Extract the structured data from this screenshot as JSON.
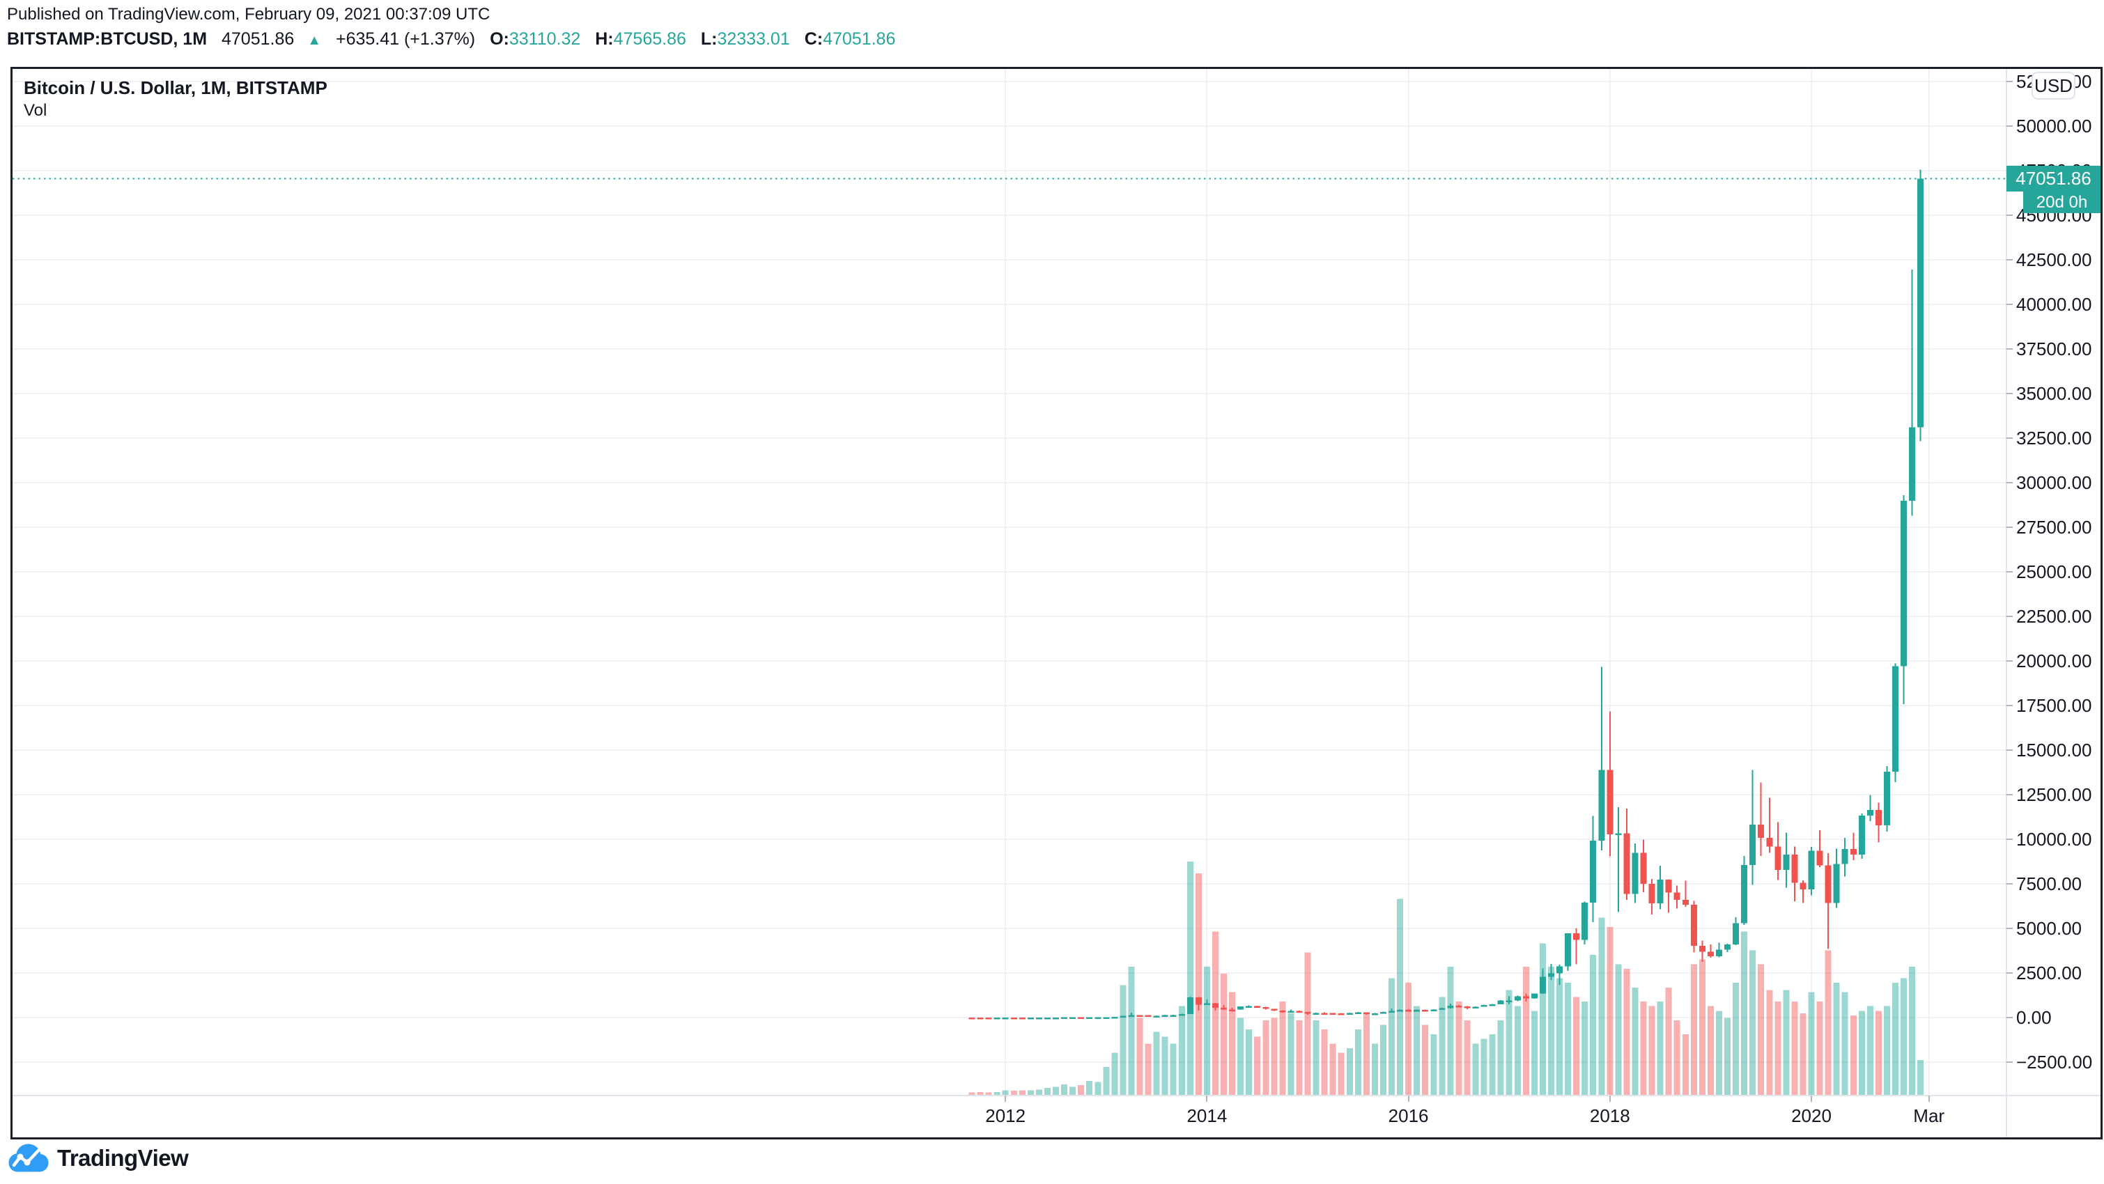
{
  "header": {
    "published_line": "Published on TradingView.com, February 09, 2021 00:37:09 UTC",
    "ticker": {
      "symbol_interval": "BITSTAMP:BTCUSD, 1M",
      "last_price": "47051.86",
      "direction_icon": "up-triangle",
      "change": "+635.41 (+1.37%)",
      "open_label": "O:",
      "open": "33110.32",
      "high_label": "H:",
      "high": "47565.86",
      "low_label": "L:",
      "low": "32333.01",
      "close_label": "C:",
      "close": "47051.86"
    }
  },
  "chart": {
    "pane_title": "Bitcoin / U.S. Dollar, 1M, BITSTAMP",
    "indicator_label": "Vol",
    "currency_button": "USD",
    "current_price_label": "47051.86",
    "countdown_label": "20d 0h",
    "y_axis_ticks": [
      "52500.00",
      "50000.00",
      "47500.00",
      "45000.00",
      "42500.00",
      "40000.00",
      "37500.00",
      "35000.00",
      "32500.00",
      "30000.00",
      "27500.00",
      "25000.00",
      "22500.00",
      "20000.00",
      "17500.00",
      "15000.00",
      "12500.00",
      "10000.00",
      "7500.00",
      "5000.00",
      "2500.00",
      "0.00",
      "−2500.00"
    ],
    "x_axis_ticks": [
      {
        "label": "2012",
        "month_index": 4
      },
      {
        "label": "2014",
        "month_index": 28
      },
      {
        "label": "2016",
        "month_index": 52
      },
      {
        "label": "2018",
        "month_index": 76
      },
      {
        "label": "2020",
        "month_index": 100
      },
      {
        "label": "Mar",
        "month_index": 114
      }
    ]
  },
  "footer": {
    "brand": "TradingView",
    "logo_icon": "tradingview-cloud-logo"
  },
  "colors": {
    "text": "#131722",
    "teal": "#26a69a",
    "red": "#ef5350",
    "volume_teal": "rgba(38,166,154,0.45)",
    "volume_red": "rgba(239,83,80,0.45)",
    "grid": "#ededf1",
    "separator": "#e0e3eb",
    "border": "#1b1f2a",
    "logo_blue": "#2f9cf5"
  },
  "chart_data": {
    "type": "candlestick",
    "symbol": "BITSTAMP:BTCUSD",
    "interval": "1M",
    "title": "Bitcoin / U.S. Dollar, 1M, BITSTAMP",
    "indicator": "Vol",
    "grid": true,
    "price_axis": {
      "side": "right",
      "min": -2500,
      "max": 52500,
      "tick_step": 2500
    },
    "current_price": 47051.86,
    "bar_close_countdown": "20d 0h",
    "columns": [
      "month",
      "open",
      "high",
      "low",
      "close",
      "volume_rel"
    ],
    "months": [
      [
        "2011-09",
        8.19,
        8.9,
        4.14,
        5.03,
        0.01
      ],
      [
        "2011-10",
        5.03,
        5.14,
        1.94,
        3.27,
        0.012
      ],
      [
        "2011-11",
        3.27,
        3.6,
        1.99,
        2.97,
        0.01
      ],
      [
        "2011-12",
        2.97,
        4.84,
        2.84,
        4.72,
        0.012
      ],
      [
        "2012-01",
        4.72,
        7.22,
        3.8,
        5.48,
        0.02
      ],
      [
        "2012-02",
        5.48,
        5.7,
        3.8,
        4.92,
        0.018
      ],
      [
        "2012-03",
        4.92,
        5.45,
        4.45,
        4.88,
        0.02
      ],
      [
        "2012-04",
        4.88,
        5.37,
        4.6,
        4.93,
        0.02
      ],
      [
        "2012-05",
        4.93,
        5.2,
        4.8,
        5.17,
        0.022
      ],
      [
        "2012-06",
        5.17,
        6.9,
        5.11,
        6.7,
        0.03
      ],
      [
        "2012-07",
        6.7,
        9.48,
        6.25,
        9.4,
        0.035
      ],
      [
        "2012-08",
        9.4,
        16.41,
        7.52,
        10.2,
        0.045
      ],
      [
        "2012-09",
        10.2,
        12.7,
        9.66,
        12.4,
        0.035
      ],
      [
        "2012-10",
        12.4,
        12.85,
        10.21,
        11.18,
        0.042
      ],
      [
        "2012-11",
        11.18,
        12.75,
        10.1,
        12.56,
        0.06
      ],
      [
        "2012-12",
        12.56,
        13.95,
        12.3,
        13.45,
        0.055
      ],
      [
        "2013-01",
        13.45,
        20.61,
        13.16,
        20.41,
        0.12
      ],
      [
        "2013-02",
        20.41,
        34.8,
        19.77,
        33.38,
        0.18
      ],
      [
        "2013-03",
        33.38,
        94.7,
        33.0,
        93.03,
        0.47
      ],
      [
        "2013-04",
        93.03,
        266.0,
        50.01,
        139.23,
        0.55
      ],
      [
        "2013-05",
        139.23,
        145.0,
        79.0,
        128.8,
        0.33
      ],
      [
        "2013-06",
        128.8,
        129.78,
        88.05,
        97.5,
        0.22
      ],
      [
        "2013-07",
        97.5,
        110.27,
        63.53,
        106.21,
        0.27
      ],
      [
        "2013-08",
        106.21,
        147.0,
        92.5,
        141.0,
        0.25
      ],
      [
        "2013-09",
        141.0,
        147.49,
        109.71,
        141.1,
        0.22
      ],
      [
        "2013-10",
        141.1,
        211.0,
        118.0,
        204.04,
        0.38
      ],
      [
        "2013-11",
        204.04,
        1163.0,
        203.0,
        1129.99,
        1.0
      ],
      [
        "2013-12",
        1129.99,
        1153.27,
        382.21,
        732.0,
        0.95
      ],
      [
        "2014-01",
        732.0,
        1006.0,
        711.11,
        805.94,
        0.55
      ],
      [
        "2014-02",
        805.94,
        830.0,
        400.0,
        550.1,
        0.7
      ],
      [
        "2014-03",
        550.1,
        709.71,
        436.99,
        458.11,
        0.52
      ],
      [
        "2014-04",
        458.11,
        548.0,
        340.0,
        447.45,
        0.44
      ],
      [
        "2014-05",
        447.45,
        628.0,
        420.0,
        627.91,
        0.33
      ],
      [
        "2014-06",
        627.91,
        675.0,
        540.0,
        641.8,
        0.28
      ],
      [
        "2014-07",
        641.8,
        658.0,
        565.61,
        583.96,
        0.25
      ],
      [
        "2014-08",
        583.96,
        602.0,
        442.0,
        478.99,
        0.32
      ],
      [
        "2014-09",
        478.99,
        492.0,
        365.22,
        387.4,
        0.33
      ],
      [
        "2014-10",
        387.4,
        411.0,
        275.0,
        338.36,
        0.4
      ],
      [
        "2014-11",
        338.36,
        457.09,
        320.15,
        378.0,
        0.35
      ],
      [
        "2014-12",
        378.0,
        384.44,
        304.0,
        318.24,
        0.32
      ],
      [
        "2015-01",
        318.24,
        321.0,
        152.4,
        217.46,
        0.61
      ],
      [
        "2015-02",
        217.46,
        265.0,
        210.0,
        254.24,
        0.32
      ],
      [
        "2015-03",
        254.24,
        300.04,
        236.0,
        244.22,
        0.28
      ],
      [
        "2015-04",
        244.22,
        262.0,
        210.0,
        235.94,
        0.22
      ],
      [
        "2015-05",
        235.94,
        249.99,
        227.0,
        229.85,
        0.18
      ],
      [
        "2015-06",
        229.85,
        268.0,
        219.0,
        263.35,
        0.2
      ],
      [
        "2015-07",
        263.35,
        319.0,
        255.0,
        284.0,
        0.28
      ],
      [
        "2015-08",
        284.0,
        285.93,
        162.0,
        229.99,
        0.35
      ],
      [
        "2015-09",
        229.99,
        248.0,
        223.0,
        236.06,
        0.22
      ],
      [
        "2015-10",
        236.06,
        334.0,
        235.0,
        314.17,
        0.3
      ],
      [
        "2015-11",
        314.17,
        504.0,
        290.11,
        377.0,
        0.5
      ],
      [
        "2015-12",
        377.0,
        469.8,
        340.0,
        430.05,
        0.84
      ],
      [
        "2016-01",
        430.05,
        462.92,
        350.0,
        368.49,
        0.48
      ],
      [
        "2016-02",
        368.49,
        447.0,
        365.0,
        437.0,
        0.38
      ],
      [
        "2016-03",
        437.0,
        440.49,
        388.0,
        416.01,
        0.3
      ],
      [
        "2016-04",
        416.01,
        470.0,
        412.0,
        448.31,
        0.26
      ],
      [
        "2016-05",
        448.31,
        550.0,
        442.0,
        531.39,
        0.42
      ],
      [
        "2016-06",
        531.39,
        781.99,
        516.72,
        673.33,
        0.55
      ],
      [
        "2016-07",
        673.33,
        707.48,
        604.0,
        624.68,
        0.4
      ],
      [
        "2016-08",
        624.68,
        638.0,
        465.0,
        572.26,
        0.32
      ],
      [
        "2016-09",
        572.26,
        628.0,
        565.0,
        609.73,
        0.22
      ],
      [
        "2016-10",
        609.73,
        719.97,
        605.0,
        700.97,
        0.24
      ],
      [
        "2016-11",
        700.97,
        755.0,
        677.0,
        745.69,
        0.26
      ],
      [
        "2016-12",
        745.69,
        982.57,
        741.0,
        963.74,
        0.32
      ],
      [
        "2017-01",
        963.74,
        1191.0,
        735.0,
        965.52,
        0.45
      ],
      [
        "2017-02",
        965.52,
        1233.0,
        915.0,
        1190.0,
        0.38
      ],
      [
        "2017-03",
        1190.0,
        1350.0,
        891.33,
        1079.99,
        0.55
      ],
      [
        "2017-04",
        1079.99,
        1347.91,
        1061.0,
        1348.0,
        0.36
      ],
      [
        "2017-05",
        1348.0,
        2760.1,
        1337.61,
        2286.41,
        0.65
      ],
      [
        "2017-06",
        2286.41,
        2999.0,
        2100.0,
        2480.6,
        0.55
      ],
      [
        "2017-07",
        2480.6,
        2966.66,
        1830.0,
        2875.34,
        0.5
      ],
      [
        "2017-08",
        2875.34,
        4736.05,
        2617.02,
        4735.1,
        0.48
      ],
      [
        "2017-09",
        4735.1,
        5000.0,
        2980.0,
        4360.62,
        0.42
      ],
      [
        "2017-10",
        4360.62,
        6498.0,
        4110.0,
        6440.97,
        0.4
      ],
      [
        "2017-11",
        6440.97,
        11300.03,
        5358.0,
        9916.54,
        0.6
      ],
      [
        "2017-12",
        9916.54,
        19666.0,
        9380.0,
        13880.0,
        0.76
      ],
      [
        "2018-01",
        13880.0,
        17176.24,
        9035.0,
        10265.4,
        0.72
      ],
      [
        "2018-02",
        10265.4,
        11788.0,
        5920.72,
        10325.64,
        0.56
      ],
      [
        "2018-03",
        10325.64,
        11710.0,
        6600.1,
        6926.02,
        0.54
      ],
      [
        "2018-04",
        6926.02,
        9759.0,
        6425.0,
        9240.0,
        0.46
      ],
      [
        "2018-05",
        9240.0,
        9990.0,
        7041.0,
        7494.17,
        0.4
      ],
      [
        "2018-06",
        7494.17,
        7780.0,
        5777.0,
        6404.0,
        0.38
      ],
      [
        "2018-07",
        6404.0,
        8507.25,
        6070.0,
        7735.67,
        0.4
      ],
      [
        "2018-08",
        7735.67,
        7750.0,
        5880.0,
        7014.0,
        0.46
      ],
      [
        "2018-09",
        7014.0,
        7412.0,
        6111.0,
        6601.96,
        0.32
      ],
      [
        "2018-10",
        6601.96,
        7680.0,
        6205.0,
        6318.4,
        0.26
      ],
      [
        "2018-11",
        6318.4,
        6542.77,
        3652.66,
        4017.27,
        0.56
      ],
      [
        "2018-12",
        4017.27,
        4312.99,
        3122.28,
        3693.3,
        0.58
      ],
      [
        "2019-01",
        3693.3,
        4109.0,
        3349.92,
        3437.2,
        0.38
      ],
      [
        "2019-02",
        3437.2,
        4190.0,
        3373.07,
        3816.6,
        0.36
      ],
      [
        "2019-03",
        3816.6,
        4139.0,
        3670.69,
        4096.9,
        0.33
      ],
      [
        "2019-04",
        4096.9,
        5627.0,
        4054.0,
        5285.14,
        0.48
      ],
      [
        "2019-05",
        5285.14,
        9065.0,
        5205.0,
        8555.0,
        0.7
      ],
      [
        "2019-06",
        8555.0,
        13880.0,
        7432.07,
        10818.57,
        0.62
      ],
      [
        "2019-07",
        10818.57,
        13184.94,
        9071.0,
        10080.53,
        0.56
      ],
      [
        "2019-08",
        10080.53,
        12325.0,
        9231.0,
        9594.42,
        0.45
      ],
      [
        "2019-09",
        9594.42,
        10949.0,
        7714.0,
        8290.63,
        0.4
      ],
      [
        "2019-10",
        8290.63,
        10370.0,
        7293.0,
        9140.86,
        0.45
      ],
      [
        "2019-11",
        9140.86,
        9595.0,
        6525.0,
        7556.87,
        0.4
      ],
      [
        "2019-12",
        7556.87,
        7689.0,
        6430.0,
        7193.6,
        0.35
      ],
      [
        "2020-01",
        7193.6,
        9574.0,
        6853.53,
        9350.53,
        0.44
      ],
      [
        "2020-02",
        9350.53,
        10500.0,
        8435.0,
        8543.7,
        0.4
      ],
      [
        "2020-03",
        8543.7,
        9220.0,
        3850.0,
        6424.35,
        0.62
      ],
      [
        "2020-04",
        6424.35,
        9470.0,
        6150.0,
        8620.0,
        0.48
      ],
      [
        "2020-05",
        8620.0,
        10074.0,
        7903.91,
        9446.57,
        0.44
      ],
      [
        "2020-06",
        9446.57,
        10380.0,
        8833.0,
        9135.46,
        0.34
      ],
      [
        "2020-07",
        9135.46,
        11444.0,
        8905.0,
        11333.24,
        0.36
      ],
      [
        "2020-08",
        11333.24,
        12486.61,
        11010.0,
        11650.0,
        0.38
      ],
      [
        "2020-09",
        11650.0,
        12050.0,
        9825.0,
        10776.59,
        0.36
      ],
      [
        "2020-10",
        10776.59,
        14100.0,
        10437.0,
        13797.31,
        0.38
      ],
      [
        "2020-11",
        13797.31,
        19863.16,
        13195.0,
        19698.09,
        0.48
      ],
      [
        "2020-12",
        19698.09,
        29300.0,
        17572.33,
        28990.08,
        0.5
      ],
      [
        "2021-01",
        28990.08,
        41950.0,
        28150.0,
        33110.32,
        0.55
      ],
      [
        "2021-02",
        33110.32,
        47565.86,
        32333.01,
        47051.86,
        0.15
      ]
    ]
  }
}
